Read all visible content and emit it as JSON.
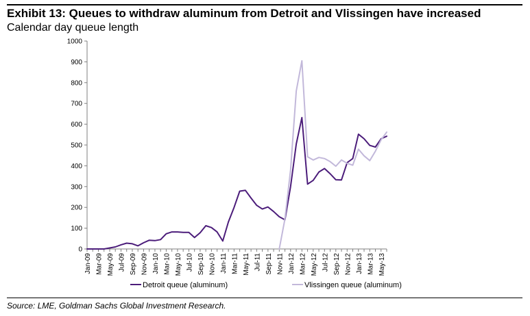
{
  "title": "Exhibit 13: Queues to withdraw aluminum from Detroit and Vlissingen have increased",
  "subtitle": "Calendar day queue length",
  "source": "Source: LME, Goldman Sachs Global Investment Research.",
  "colors": {
    "detroit": "#4B1C7A",
    "vlissingen": "#C2B8DA",
    "axis": "#7F7F7F"
  },
  "chart_data": {
    "type": "line",
    "title": "",
    "xlabel": "",
    "ylabel": "Calendar day queue length",
    "ylim": [
      0,
      1000
    ],
    "yticks": [
      0,
      100,
      200,
      300,
      400,
      500,
      600,
      700,
      800,
      900,
      1000
    ],
    "categories": [
      "Jan-09",
      "Mar-09",
      "May-09",
      "Jul-09",
      "Sep-09",
      "Nov-09",
      "Jan-10",
      "Mar-10",
      "May-10",
      "Jul-10",
      "Sep-10",
      "Nov-10",
      "Jan-11",
      "Mar-11",
      "May-11",
      "Jul-11",
      "Sep-11",
      "Nov-11",
      "Jan-12",
      "Mar-12",
      "May-12",
      "Jul-12",
      "Sep-12",
      "Nov-12",
      "Jan-13",
      "Mar-13",
      "May-13"
    ],
    "legend_position": "bottom",
    "series": [
      {
        "name": "Detroit queue (aluminum)",
        "color": "#4B1C7A",
        "points": [
          [
            0,
            0
          ],
          [
            1,
            0
          ],
          [
            2,
            0
          ],
          [
            3,
            0
          ],
          [
            4,
            5
          ],
          [
            5,
            10
          ],
          [
            6,
            20
          ],
          [
            7,
            28
          ],
          [
            8,
            25
          ],
          [
            9,
            15
          ],
          [
            10,
            30
          ],
          [
            11,
            42
          ],
          [
            12,
            40
          ],
          [
            13,
            45
          ],
          [
            14,
            73
          ],
          [
            15,
            82
          ],
          [
            16,
            82
          ],
          [
            17,
            80
          ],
          [
            18,
            80
          ],
          [
            19,
            55
          ],
          [
            20,
            78
          ],
          [
            21,
            112
          ],
          [
            22,
            103
          ],
          [
            23,
            82
          ],
          [
            24,
            38
          ],
          [
            25,
            130
          ],
          [
            26,
            200
          ],
          [
            27,
            278
          ],
          [
            28,
            282
          ],
          [
            29,
            245
          ],
          [
            30,
            210
          ],
          [
            31,
            192
          ],
          [
            32,
            202
          ],
          [
            33,
            180
          ],
          [
            34,
            155
          ],
          [
            35,
            140
          ],
          [
            36,
            300
          ],
          [
            37,
            505
          ],
          [
            38,
            632
          ],
          [
            39,
            312
          ],
          [
            40,
            330
          ],
          [
            41,
            370
          ],
          [
            42,
            387
          ],
          [
            43,
            362
          ],
          [
            44,
            333
          ],
          [
            45,
            332
          ],
          [
            46,
            415
          ],
          [
            47,
            435
          ],
          [
            48,
            552
          ],
          [
            49,
            530
          ],
          [
            50,
            498
          ],
          [
            51,
            490
          ],
          [
            52,
            530
          ],
          [
            53,
            542
          ]
        ]
      },
      {
        "name": "Vlissingen queue (aluminum)",
        "color": "#C2B8DA",
        "points": [
          [
            34,
            0
          ],
          [
            35,
            145
          ],
          [
            36,
            380
          ],
          [
            37,
            760
          ],
          [
            38,
            905
          ],
          [
            39,
            443
          ],
          [
            40,
            428
          ],
          [
            41,
            440
          ],
          [
            42,
            435
          ],
          [
            43,
            420
          ],
          [
            44,
            398
          ],
          [
            45,
            428
          ],
          [
            46,
            412
          ],
          [
            47,
            403
          ],
          [
            48,
            480
          ],
          [
            49,
            448
          ],
          [
            50,
            425
          ],
          [
            51,
            470
          ],
          [
            52,
            525
          ],
          [
            53,
            562
          ]
        ]
      }
    ]
  }
}
